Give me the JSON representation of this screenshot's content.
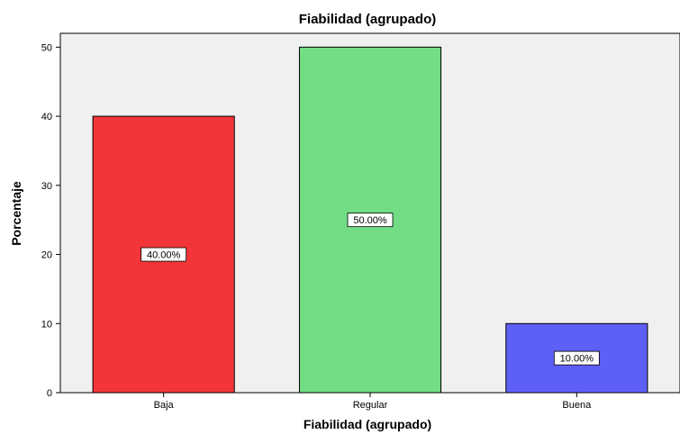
{
  "chart_data": {
    "type": "bar",
    "title": "Fiabilidad (agrupado)",
    "xlabel": "Fiabilidad (agrupado)",
    "ylabel": "Porcentaje",
    "categories": [
      "Baja",
      "Regular",
      "Buena"
    ],
    "values": [
      40,
      50,
      10
    ],
    "data_labels": [
      "40.00%",
      "50.00%",
      "10.00%"
    ],
    "colors": [
      "#f23538",
      "#72dd85",
      "#5e5ff6"
    ],
    "ylim": [
      0,
      52
    ],
    "yticks": [
      0,
      10,
      20,
      30,
      40,
      50
    ],
    "ytick_labels": [
      "0",
      "10",
      "20",
      "30",
      "40",
      "50"
    ],
    "grid": false,
    "legend": "none",
    "plot_background": "#f0f0f0"
  }
}
